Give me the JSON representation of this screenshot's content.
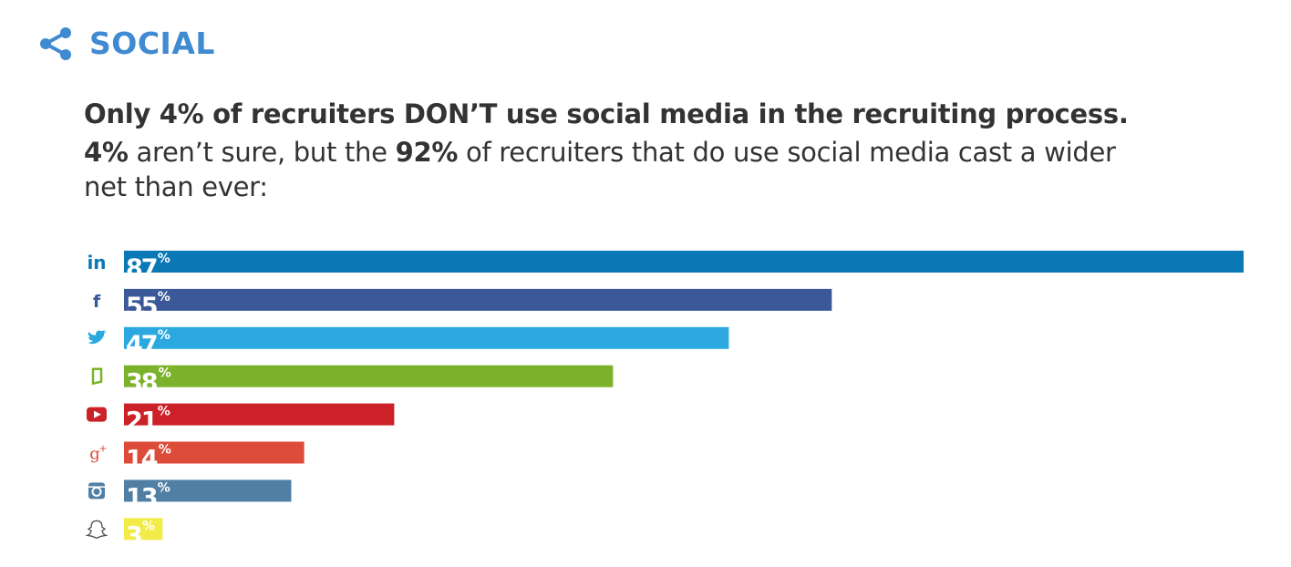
{
  "section_title": "SOCIAL",
  "headline": "Only 4% of recruiters DON’T use social media in the recruiting process.",
  "sub": {
    "p1": "4%",
    "p2": " aren’t sure, but the ",
    "p3": "92%",
    "p4": " of recruiters that do use social media cast a wider net than ever:"
  },
  "chart_data": {
    "type": "bar",
    "orientation": "horizontal",
    "categories": [
      "LinkedIn",
      "Facebook",
      "Twitter",
      "Glassdoor",
      "YouTube",
      "Google+",
      "Instagram",
      "Snapchat"
    ],
    "values": [
      87,
      55,
      47,
      38,
      21,
      14,
      13,
      3
    ],
    "labels": [
      "87",
      "55",
      "47",
      "38",
      "21",
      "14",
      "13",
      "3"
    ],
    "unit": "%",
    "colors": [
      "#0a78b5",
      "#3b5998",
      "#2ba8e0",
      "#7cb22b",
      "#cc2128",
      "#dd4b39",
      "#517fa4",
      "#f3ec48"
    ],
    "icons": [
      "linkedin-icon",
      "facebook-icon",
      "twitter-icon",
      "glassdoor-icon",
      "youtube-icon",
      "google-plus-icon",
      "instagram-icon",
      "snapchat-icon"
    ],
    "xlim": [
      0,
      87
    ]
  }
}
